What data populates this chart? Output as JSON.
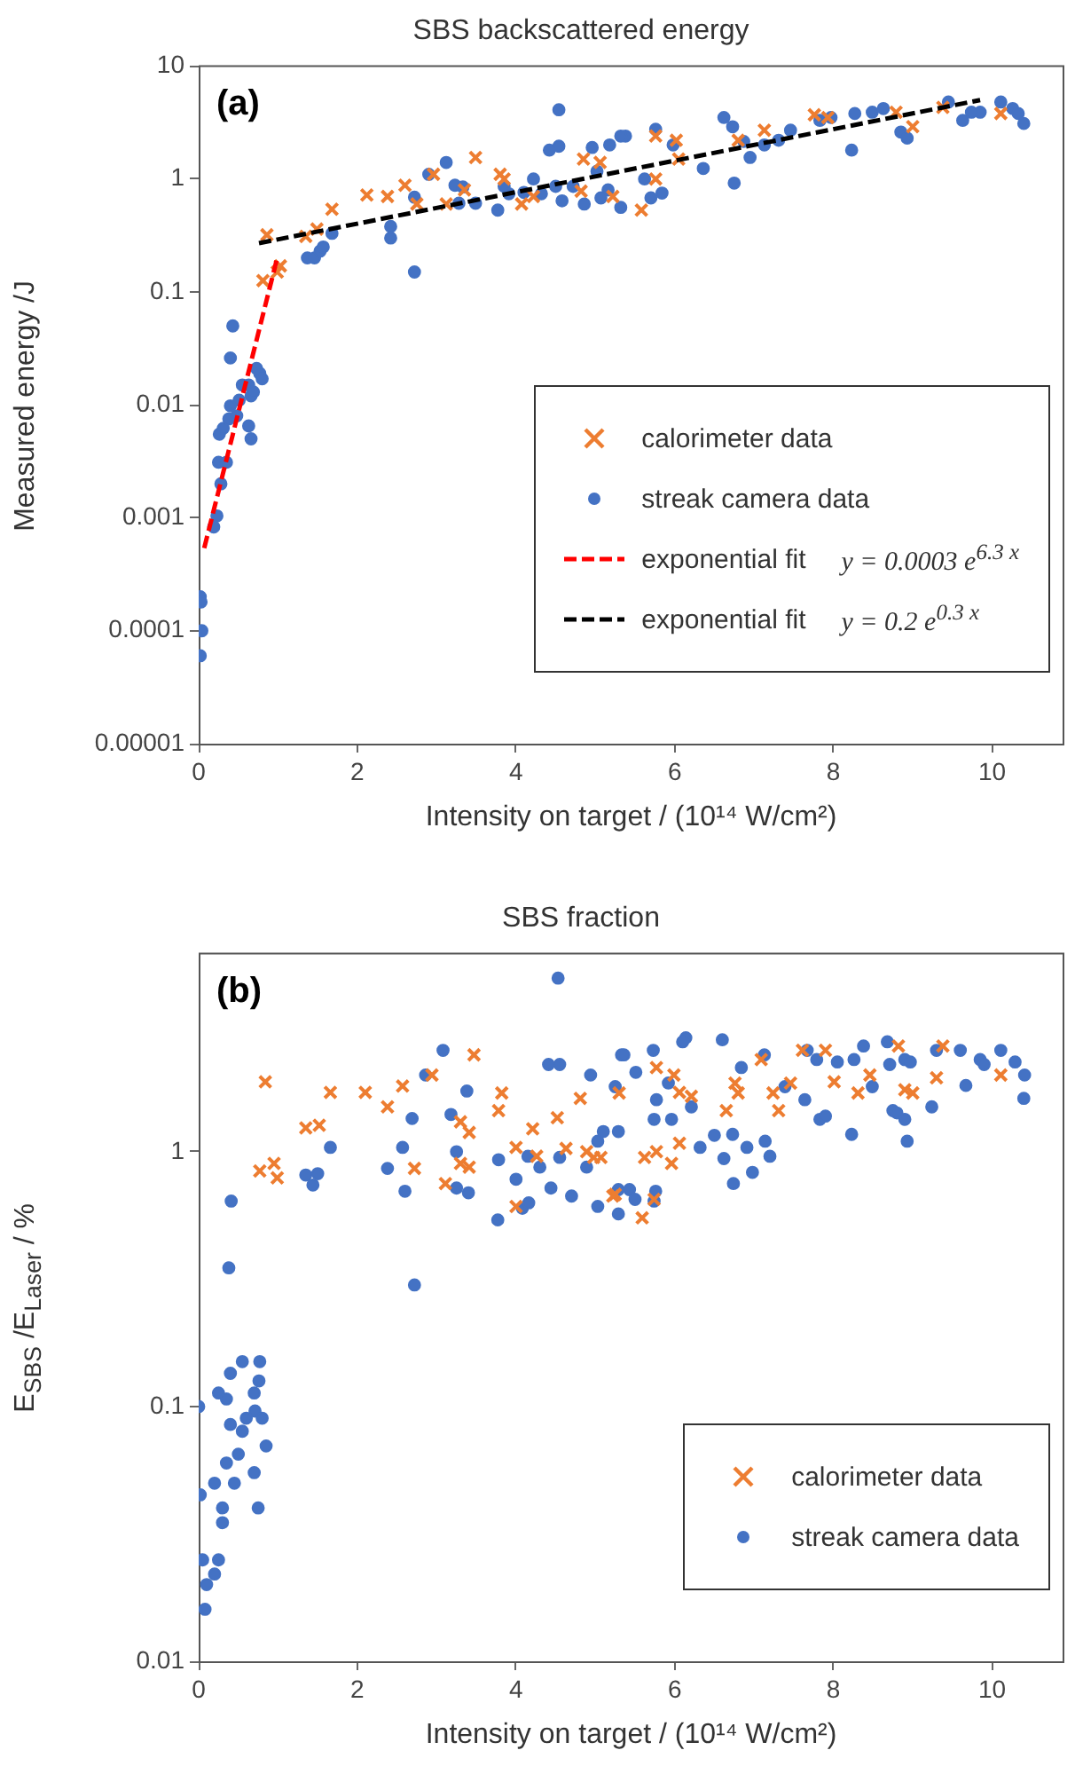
{
  "chart_data": [
    {
      "type": "scatter",
      "title": "SBS backscattered energy",
      "xlabel": "Intensity on target / (10¹⁴ W/cm²)",
      "ylabel": "Measured energy /J",
      "annotations": [
        "(a)",
        "y = 0.0003 e$^{6.3 x}$",
        "y = 0.2 e$^{0.3 x}$"
      ],
      "log": "y",
      "xlim": [
        0,
        10.9
      ],
      "xticks": [
        0,
        2,
        4,
        6,
        8,
        10
      ],
      "ylim": [
        1e-05,
        10
      ],
      "yticks": [
        {
          "value": 1e-05,
          "label": "0.00001"
        },
        0.0001,
        0.001,
        0.01,
        0.1,
        1,
        10
      ],
      "grid": false,
      "legend": "bottom right",
      "series": [
        {
          "name": "calorimeter data",
          "color": "#ed7d31",
          "type": "scatter",
          "marker": "cross",
          "x": [
            0.86,
            0.81,
            0.99,
            1.03,
            1.35,
            1.49,
            1.68,
            2.12,
            2.38,
            2.6,
            2.75,
            2.96,
            3.49,
            3.12,
            3.35,
            3.8,
            3.85,
            4.07,
            4.22,
            4.85,
            5.06,
            5.22,
            4.82,
            5.76,
            6.02,
            6.05,
            5.76,
            5.58,
            6.8,
            7.13,
            7.76,
            7.93,
            8.79,
            9.0,
            9.38,
            10.11
          ],
          "values": [
            0.32,
            0.126,
            0.15,
            0.17,
            0.31,
            0.36,
            0.54,
            0.72,
            0.7,
            0.88,
            0.6,
            1.1,
            1.55,
            0.6,
            0.8,
            1.1,
            1.0,
            0.6,
            0.7,
            1.5,
            1.4,
            0.7,
            0.78,
            2.4,
            2.2,
            1.5,
            1.0,
            0.53,
            2.2,
            2.7,
            3.7,
            3.5,
            3.9,
            2.9,
            4.3,
            3.8
          ]
        },
        {
          "name": "streak camera data",
          "color": "#4472c4",
          "type": "scatter",
          "marker": "circle",
          "x": [
            0.02,
            0.03,
            0.04,
            0.02,
            0.23,
            0.19,
            0.28,
            0.25,
            0.35,
            0.26,
            0.31,
            0.38,
            0.48,
            0.4,
            0.4,
            0.43,
            0.63,
            0.66,
            0.51,
            0.55,
            0.63,
            0.66,
            0.69,
            0.73,
            0.77,
            0.8,
            1.37,
            1.46,
            1.53,
            1.57,
            1.68,
            2.42,
            2.42,
            2.72,
            2.72,
            2.9,
            3.12,
            3.23,
            3.33,
            3.28,
            3.49,
            3.77,
            3.85,
            3.91,
            4.1,
            4.22,
            4.32,
            4.42,
            4.54,
            4.54,
            4.5,
            4.58,
            4.72,
            4.96,
            5.02,
            5.16,
            5.38,
            4.86,
            6.62,
            6.73,
            6.87,
            6.95,
            6.75,
            5.76,
            5.98,
            5.32,
            5.18,
            5.07,
            5.32,
            5.84,
            6.36,
            7.13,
            7.31,
            7.46,
            7.83,
            7.97,
            8.27,
            8.49,
            8.63,
            8.23,
            8.85,
            8.93,
            9.45,
            9.63,
            9.85,
            10.11,
            10.26,
            10.4,
            10.33,
            9.74,
            5.62,
            5.7
          ],
          "values": [
            0.0002,
            0.00018,
            0.0001,
            6e-05,
            0.00104,
            0.00083,
            0.002,
            0.0031,
            0.0031,
            0.0055,
            0.0062,
            0.0075,
            0.008,
            0.0098,
            0.026,
            0.05,
            0.0065,
            0.005,
            0.011,
            0.015,
            0.015,
            0.012,
            0.013,
            0.021,
            0.019,
            0.017,
            0.2,
            0.2,
            0.23,
            0.25,
            0.33,
            0.38,
            0.3,
            0.15,
            0.69,
            1.1,
            1.4,
            0.88,
            0.85,
            0.61,
            0.61,
            0.53,
            0.86,
            0.74,
            0.76,
            1.0,
            0.74,
            1.8,
            1.95,
            4.1,
            0.86,
            0.64,
            0.86,
            1.9,
            1.17,
            0.8,
            2.4,
            0.6,
            3.5,
            2.9,
            2.15,
            1.55,
            0.92,
            2.75,
            2.0,
            2.4,
            2.0,
            0.68,
            0.56,
            0.75,
            1.24,
            2.0,
            2.2,
            2.7,
            3.3,
            3.5,
            3.8,
            3.9,
            4.2,
            1.8,
            2.6,
            2.3,
            4.8,
            3.3,
            3.9,
            4.8,
            4.2,
            3.1,
            3.8,
            3.9,
            1.0,
            0.68
          ]
        },
        {
          "name": "exponential fit",
          "color": "#ff0000",
          "type": "line",
          "marker": "none",
          "line_style": "dashed",
          "x": [
            0.07,
            0.99
          ],
          "values": [
            0.00054,
            0.2
          ]
        },
        {
          "name": "exponential fit",
          "color": "#000000",
          "type": "line",
          "marker": "none",
          "line_style": "dashed",
          "x": [
            0.76,
            9.85
          ],
          "values": [
            0.27,
            5.0
          ]
        }
      ]
    },
    {
      "type": "scatter",
      "title": "SBS fraction",
      "xlabel": "Intensity on target / (10¹⁴ W/cm²)",
      "ylabel": "E$_{SBS}$ /E$_{Laser}$ / %",
      "annotations": [
        "(b)"
      ],
      "log": "y",
      "xlim": [
        0,
        10.9
      ],
      "xticks": [
        0,
        2,
        4,
        6,
        8,
        10
      ],
      "ylim": [
        0.01,
        6
      ],
      "yticks": [
        0.01,
        0.1,
        1
      ],
      "grid": false,
      "legend": "bottom right",
      "series": [
        {
          "name": "calorimeter data",
          "color": "#ed7d31",
          "type": "scatter",
          "marker": "cross",
          "x": [
            0.84,
            0.77,
            0.95,
            0.99,
            1.35,
            1.52,
            1.66,
            2.1,
            2.38,
            2.57,
            2.94,
            3.47,
            2.72,
            3.11,
            3.3,
            3.41,
            3.3,
            3.41,
            3.78,
            3.82,
            4.0,
            4.21,
            4.26,
            4.0,
            4.52,
            4.63,
            4.81,
            4.89,
            5.07,
            5.22,
            5.3,
            5.77,
            5.99,
            6.06,
            6.21,
            6.76,
            6.8,
            7.09,
            6.65,
            7.24,
            7.46,
            7.31,
            7.61,
            7.9,
            8.01,
            8.31,
            8.46,
            8.82,
            8.9,
            9.0,
            9.38,
            9.3,
            10.11,
            5.77,
            5.62,
            6.06,
            5.96,
            5.59,
            5.74,
            5.25,
            4.98
          ],
          "values": [
            1.88,
            0.84,
            0.9,
            0.79,
            1.24,
            1.27,
            1.71,
            1.71,
            1.5,
            1.81,
            2.0,
            2.4,
            0.86,
            0.75,
            1.31,
            1.19,
            0.9,
            0.87,
            1.45,
            1.7,
            1.04,
            1.23,
            0.96,
            0.61,
            1.36,
            1.03,
            1.62,
            1.0,
            0.95,
            0.67,
            1.7,
            2.14,
            2.0,
            1.71,
            1.65,
            1.86,
            1.7,
            2.3,
            1.45,
            1.7,
            1.86,
            1.45,
            2.5,
            2.5,
            1.88,
            1.7,
            2.0,
            2.6,
            1.75,
            1.7,
            2.6,
            1.95,
            2.0,
            1.0,
            0.95,
            1.08,
            0.9,
            0.55,
            0.65,
            0.68,
            0.95
          ]
        },
        {
          "name": "streak camera data",
          "color": "#4472c4",
          "type": "scatter",
          "marker": "circle",
          "x": [
            4.53,
            0.41,
            0.38,
            2.72,
            3.08,
            2.86,
            2.69,
            1.66,
            1.35,
            1.5,
            1.44,
            2.38,
            2.57,
            2.6,
            3.38,
            3.18,
            3.25,
            3.25,
            3.4,
            3.77,
            3.78,
            4.0,
            4.15,
            4.3,
            4.44,
            4.55,
            4.7,
            4.89,
            5.03,
            4.94,
            4.41,
            4.55,
            5.03,
            5.25,
            5.33,
            5.29,
            4.08,
            4.16,
            0.55,
            0.77,
            0.4,
            0.76,
            0.25,
            0.7,
            0.35,
            0.0,
            0.71,
            0.02,
            0.05,
            0.1,
            0.08,
            0.2,
            0.25,
            0.3,
            0.35,
            0.4,
            0.45,
            0.5,
            0.55,
            0.6,
            0.7,
            0.75,
            0.8,
            0.85,
            0.3,
            0.2,
            6.14,
            6.1,
            6.6,
            5.73,
            5.36,
            5.51,
            5.92,
            6.21,
            5.77,
            5.74,
            5.96,
            5.29,
            6.32,
            6.62,
            6.74,
            6.98,
            6.91,
            7.2,
            7.14,
            6.84,
            7.13,
            7.39,
            7.64,
            7.83,
            7.9,
            7.79,
            7.67,
            8.05,
            8.23,
            8.26,
            8.38,
            8.49,
            8.68,
            8.71,
            8.9,
            8.97,
            8.75,
            8.9,
            8.93,
            8.8,
            9.24,
            9.3,
            9.6,
            9.67,
            9.85,
            10.11,
            10.29,
            10.41,
            10.4,
            9.9,
            5.29,
            5.43,
            5.76,
            5.5,
            5.74,
            5.1,
            6.73,
            6.5
          ],
          "values": [
            4.8,
            0.64,
            0.35,
            0.3,
            2.5,
            2.0,
            1.35,
            1.04,
            0.81,
            0.82,
            0.74,
            0.86,
            1.04,
            0.7,
            1.73,
            1.4,
            1.0,
            0.72,
            0.69,
            0.54,
            0.93,
            0.78,
            0.96,
            0.87,
            0.72,
            0.95,
            0.67,
            0.87,
            1.1,
            2.0,
            2.2,
            2.2,
            0.61,
            1.8,
            2.4,
            0.57,
            0.6,
            0.63,
            0.15,
            0.15,
            0.135,
            0.126,
            0.113,
            0.113,
            0.107,
            0.1,
            0.096,
            0.045,
            0.025,
            0.02,
            0.016,
            0.022,
            0.025,
            0.04,
            0.06,
            0.085,
            0.05,
            0.065,
            0.08,
            0.09,
            0.055,
            0.04,
            0.09,
            0.07,
            0.035,
            0.05,
            2.8,
            2.7,
            2.75,
            2.5,
            2.4,
            2.05,
            1.86,
            1.5,
            1.6,
            1.34,
            1.34,
            1.2,
            1.04,
            0.94,
            0.75,
            0.83,
            1.04,
            0.96,
            1.1,
            2.14,
            2.4,
            1.8,
            1.6,
            1.34,
            1.38,
            2.3,
            2.5,
            2.25,
            1.17,
            2.3,
            2.6,
            1.8,
            2.7,
            2.2,
            2.3,
            2.25,
            1.45,
            1.34,
            1.1,
            1.42,
            1.5,
            2.5,
            2.5,
            1.82,
            2.3,
            2.5,
            2.25,
            2.0,
            1.62,
            2.2,
            0.71,
            0.71,
            0.7,
            0.65,
            0.64,
            1.2,
            1.17,
            1.16
          ]
        }
      ]
    }
  ]
}
